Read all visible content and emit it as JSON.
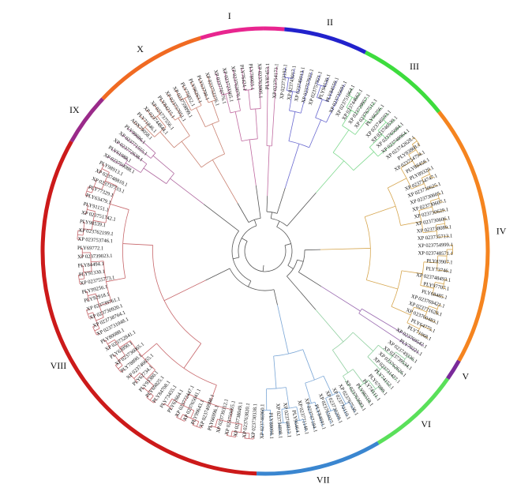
{
  "groups": [
    {
      "numeral": "I",
      "color": "#e8258f",
      "branch": "#c06aa0"
    },
    {
      "numeral": "II",
      "color": "#2222cc",
      "branch": "#6a6ad0"
    },
    {
      "numeral": "III",
      "color": "#3ddc3d",
      "branch": "#7fd98f"
    },
    {
      "numeral": "IV",
      "color": "#f5841f",
      "branch": "#d6a64f"
    },
    {
      "numeral": "V",
      "color": "#7a2a9a",
      "branch": "#9a6ab0"
    },
    {
      "numeral": "VI",
      "color": "#5ae05a",
      "branch": "#8fcf9f"
    },
    {
      "numeral": "VII",
      "color": "#3a86d0",
      "branch": "#7aa6d6"
    },
    {
      "numeral": "VIII",
      "color": "#cc1a1a",
      "branch": "#c7676b"
    },
    {
      "numeral": "IX",
      "color": "#9a2a8a",
      "branch": "#b06aa0"
    },
    {
      "numeral": "X",
      "color": "#f06a22",
      "branch": "#c98070"
    }
  ],
  "leaves": [
    {
      "label": "PLY87453.1",
      "group": "I"
    },
    {
      "label": "XP 023754173.1",
      "group": "I"
    },
    {
      "label": "XP 023733192.1",
      "group": "II"
    },
    {
      "label": "XP 023743017.1",
      "group": "II"
    },
    {
      "label": "XP 023749013.1",
      "group": "II"
    },
    {
      "label": "XP 023757922.1",
      "group": "II"
    },
    {
      "label": "XP 023757921.1",
      "group": "II"
    },
    {
      "label": "PLY94530.1",
      "group": "II"
    },
    {
      "label": "PLY84559.1",
      "group": "II"
    },
    {
      "label": "XP 023735691.1",
      "group": "II"
    },
    {
      "label": "XP 023751064.1",
      "group": "III"
    },
    {
      "label": "XP 023744662.1",
      "group": "III"
    },
    {
      "label": "XP 023739957.1",
      "group": "III"
    },
    {
      "label": "XP 023767512.1",
      "group": "III"
    },
    {
      "label": "PLY66256.1",
      "group": "III"
    },
    {
      "label": "XP 023746593.1",
      "group": "III"
    },
    {
      "label": "XP 023746539.1",
      "group": "III"
    },
    {
      "label": "XP 023765084.1",
      "group": "III"
    },
    {
      "label": "XP 023748964.1",
      "group": "III"
    },
    {
      "label": "XP 023742628.1",
      "group": "IV"
    },
    {
      "label": "PLY83868.1",
      "group": "IV"
    },
    {
      "label": "XP 023754794.1",
      "group": "IV"
    },
    {
      "label": "PLY88458.1",
      "group": "IV"
    },
    {
      "label": "PLY89320.1",
      "group": "IV"
    },
    {
      "label": "XP 023754747.1",
      "group": "IV"
    },
    {
      "label": "XP 023730625.1",
      "group": "IV"
    },
    {
      "label": "XP 023730605.1",
      "group": "IV"
    },
    {
      "label": "XP 023730607.1",
      "group": "IV"
    },
    {
      "label": "XP 023730629.1",
      "group": "IV"
    },
    {
      "label": "XP 023730606.1",
      "group": "IV"
    },
    {
      "label": "XP 023738089.1",
      "group": "IV"
    },
    {
      "label": "XP 023735713.1",
      "group": "IV"
    },
    {
      "label": "XP 023754999.1",
      "group": "IV"
    },
    {
      "label": "XP 023748571.1",
      "group": "IV"
    },
    {
      "label": "PLY83907.1",
      "group": "IV"
    },
    {
      "label": "PLY73746.1",
      "group": "IV"
    },
    {
      "label": "XP 023748493.1",
      "group": "IV"
    },
    {
      "label": "PLY97707.1",
      "group": "IV"
    },
    {
      "label": "PLY68485.1",
      "group": "IV"
    },
    {
      "label": "XP 023769421.1",
      "group": "IV"
    },
    {
      "label": "XP 023771628.1",
      "group": "IV"
    },
    {
      "label": "XP 023760483.1",
      "group": "IV"
    },
    {
      "label": "PLY64775.1",
      "group": "IV"
    },
    {
      "label": "PLY71068.1",
      "group": "IV"
    },
    {
      "label": "XP 023769542.1",
      "group": "V"
    },
    {
      "label": "PLY70221.1",
      "group": "V"
    },
    {
      "label": "XP 023749336.1",
      "group": "VI"
    },
    {
      "label": "XP 023739534.1",
      "group": "VI"
    },
    {
      "label": "XP 023762626.1",
      "group": "VI"
    },
    {
      "label": "XP 023731427.1",
      "group": "VI"
    },
    {
      "label": "PLY74152.1",
      "group": "VI"
    },
    {
      "label": "PLY67089.1",
      "group": "VI"
    },
    {
      "label": "PLY74111.1",
      "group": "VI"
    },
    {
      "label": "PLY86518.1",
      "group": "VI"
    },
    {
      "label": "XP 023763683.1",
      "group": "VI"
    },
    {
      "label": "XP 023767530.1",
      "group": "VII"
    },
    {
      "label": "XP 023770110.1",
      "group": "VII"
    },
    {
      "label": "XP 023730209.1",
      "group": "VII"
    },
    {
      "label": "XP 023765027.1",
      "group": "VII"
    },
    {
      "label": "PLY84691.1",
      "group": "VII"
    },
    {
      "label": "XP 023767184.1",
      "group": "VII"
    },
    {
      "label": "XP 023771140.1",
      "group": "VII"
    },
    {
      "label": "PLY96464.1",
      "group": "VII"
    },
    {
      "label": "XP 023748812.1",
      "group": "VII"
    },
    {
      "label": "XP 023734898.1",
      "group": "VII"
    },
    {
      "label": "PLY88098.1",
      "group": "VII"
    },
    {
      "label": "XP 023746960.1",
      "group": "VII"
    },
    {
      "label": "XP 023730338.1",
      "group": "VIII"
    },
    {
      "label": "XP 023763820.1",
      "group": "VIII"
    },
    {
      "label": "XP 023738049.1",
      "group": "VIII"
    },
    {
      "label": "XP 023750665.1",
      "group": "VIII"
    },
    {
      "label": "XP 023739312.1",
      "group": "VIII"
    },
    {
      "label": "PLY66996.1",
      "group": "VIII"
    },
    {
      "label": "XP 023740998.1",
      "group": "VIII"
    },
    {
      "label": "PLY99643.1",
      "group": "VIII"
    },
    {
      "label": "XP 023765041.1",
      "group": "VIII"
    },
    {
      "label": "XP 023772447.1",
      "group": "VIII"
    },
    {
      "label": "PLY62664.1",
      "group": "VIII"
    },
    {
      "label": "PLY73455.1",
      "group": "VIII"
    },
    {
      "label": "PLY84708.1",
      "group": "VIII"
    },
    {
      "label": "PLY69825.1",
      "group": "VIII"
    },
    {
      "label": "PLY93380.1",
      "group": "VIII"
    },
    {
      "label": "PLY62734.1",
      "group": "VIII"
    },
    {
      "label": "XP 023746655.1",
      "group": "VIII"
    },
    {
      "label": "PLY78890.1",
      "group": "VIII"
    },
    {
      "label": "XP 023736065.1",
      "group": "VIII"
    },
    {
      "label": "PLY63890.1",
      "group": "VIII"
    },
    {
      "label": "XP 023752841.1",
      "group": "VIII"
    },
    {
      "label": "PLY80088.1",
      "group": "VIII"
    },
    {
      "label": "XP 023731048.1",
      "group": "VIII"
    },
    {
      "label": "XP 023738764.1",
      "group": "VIII"
    },
    {
      "label": "XP 023730920.1",
      "group": "VIII"
    },
    {
      "label": "XP 023739761.1",
      "group": "VIII"
    },
    {
      "label": "PLY92918.1",
      "group": "VIII"
    },
    {
      "label": "PLY99256.1",
      "group": "VIII"
    },
    {
      "label": "XP 023755773.1",
      "group": "VIII"
    },
    {
      "label": "PLY91330.1",
      "group": "VIII"
    },
    {
      "label": "PLY84494.1",
      "group": "VIII"
    },
    {
      "label": "XP 023739023.1",
      "group": "VIII"
    },
    {
      "label": "PLY69772.1",
      "group": "VIII"
    },
    {
      "label": "XP 023753746.1",
      "group": "VIII"
    },
    {
      "label": "XP 023762199.1",
      "group": "VIII"
    },
    {
      "label": "PLY98539.1",
      "group": "VIII"
    },
    {
      "label": "XP 023751742.1",
      "group": "VIII"
    },
    {
      "label": "PLY91151.1",
      "group": "VIII"
    },
    {
      "label": "PLY63479.1",
      "group": "VIII"
    },
    {
      "label": "PLY77329.1",
      "group": "VIII"
    },
    {
      "label": "XP 023737733.1",
      "group": "VIII"
    },
    {
      "label": "XP 023748810.1",
      "group": "VIII"
    },
    {
      "label": "PLY98913.1",
      "group": "VIII"
    },
    {
      "label": "XP 023759088.1",
      "group": "IX"
    },
    {
      "label": "PLY61988.1",
      "group": "IX"
    },
    {
      "label": "XP 023772638.1",
      "group": "IX"
    },
    {
      "label": "XP 023771555.1",
      "group": "IX"
    },
    {
      "label": "PLY99696.1",
      "group": "IX"
    },
    {
      "label": "ADX79058.1",
      "group": "X"
    },
    {
      "label": "PLY71846.1",
      "group": "X"
    },
    {
      "label": "XP 023744844.1",
      "group": "X"
    },
    {
      "label": "XP 023737556.1",
      "group": "X"
    },
    {
      "label": "PLY84215.1",
      "group": "X"
    },
    {
      "label": "XP 023757051.1",
      "group": "X"
    },
    {
      "label": "XP 023759899.1",
      "group": "X"
    },
    {
      "label": "PLY75852.1",
      "group": "X"
    },
    {
      "label": "PLY96263.1",
      "group": "X"
    },
    {
      "label": "PLY63790.1",
      "group": "X"
    },
    {
      "label": "XP 023752276.1",
      "group": "X"
    },
    {
      "label": "XP 023770776.1",
      "group": "I"
    },
    {
      "label": "XP 023723365.1",
      "group": "I"
    },
    {
      "label": "XP 023762076.1",
      "group": "I"
    },
    {
      "label": "PLY76424.1",
      "group": "I"
    },
    {
      "label": "PLY78903.1",
      "group": "I"
    },
    {
      "label": "XP 023763005.1",
      "group": "I"
    }
  ]
}
